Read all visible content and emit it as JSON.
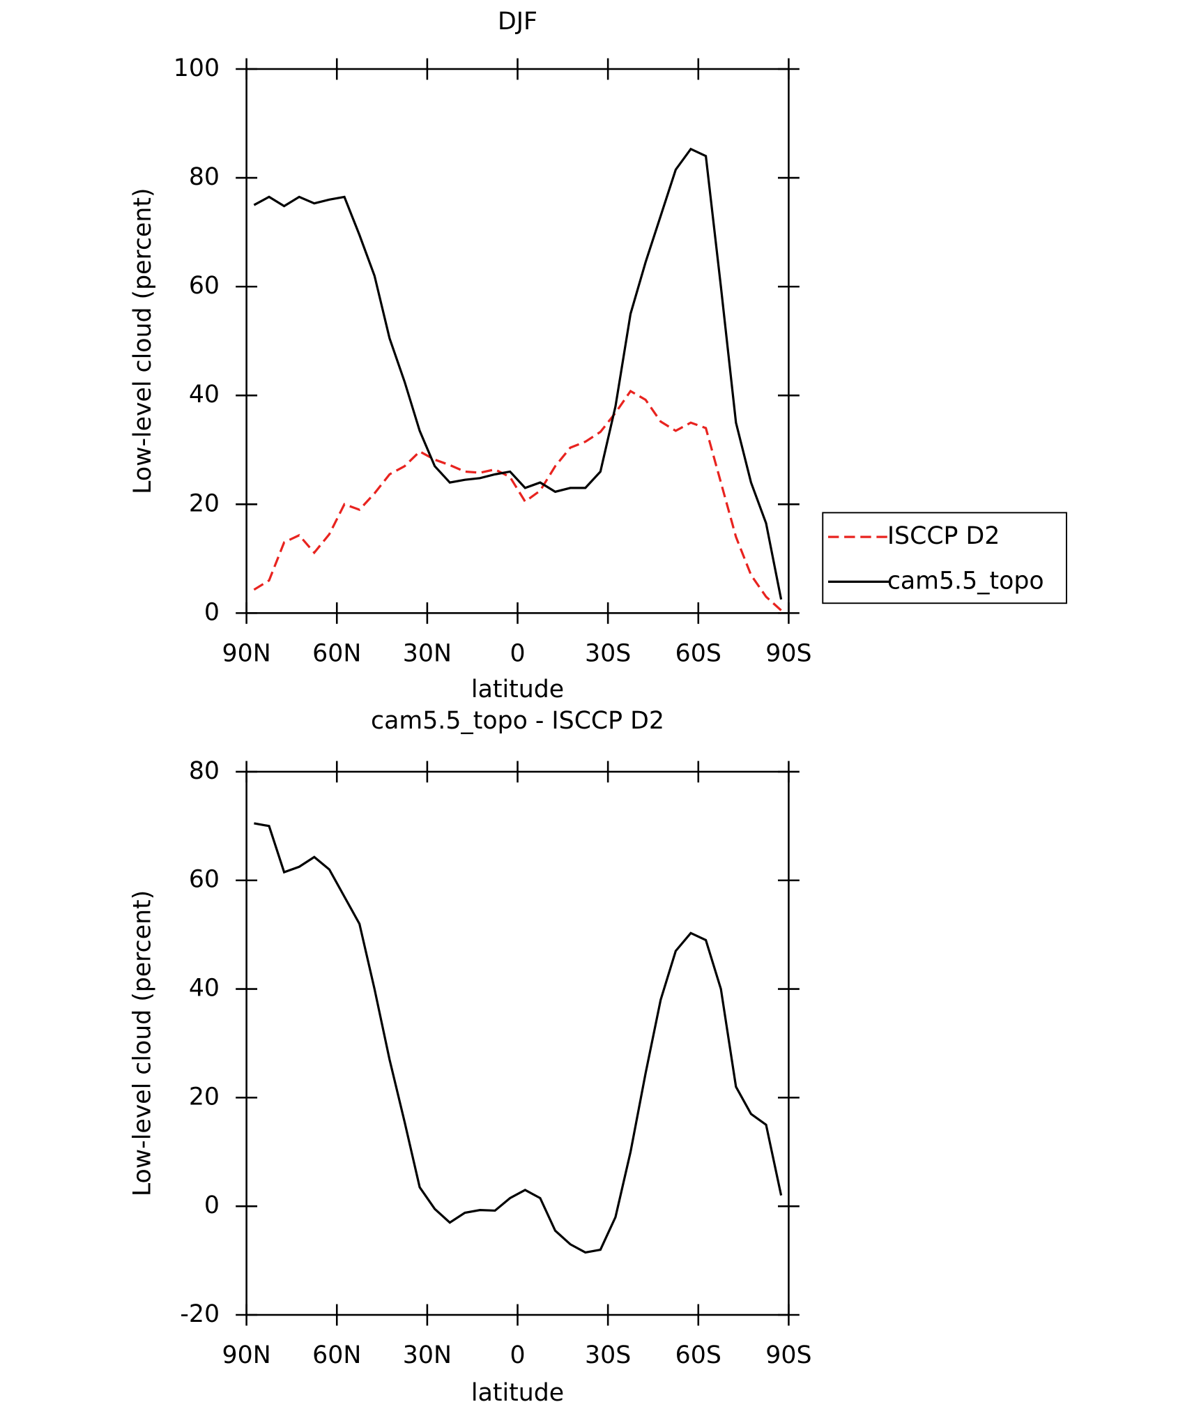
{
  "chart_data": [
    {
      "type": "line",
      "title": "DJF",
      "x_label": "latitude",
      "y_label": "Low-level cloud (percent)",
      "x": [
        87.5,
        82.5,
        77.5,
        72.5,
        67.5,
        62.5,
        57.5,
        52.5,
        47.5,
        42.5,
        37.5,
        32.5,
        27.5,
        22.5,
        17.5,
        12.5,
        7.5,
        2.5,
        -2.5,
        -7.5,
        -12.5,
        -17.5,
        -22.5,
        -27.5,
        -32.5,
        -37.5,
        -42.5,
        -47.5,
        -52.5,
        -57.5,
        -62.5,
        -67.5,
        -72.5,
        -77.5,
        -82.5,
        -87.5
      ],
      "xlim": [
        90,
        -90
      ],
      "xticks": [
        {
          "value": 90,
          "label": "90N"
        },
        {
          "value": 60,
          "label": "60N"
        },
        {
          "value": 30,
          "label": "30N"
        },
        0,
        {
          "value": -30,
          "label": "30S"
        },
        {
          "value": -60,
          "label": "60S"
        },
        {
          "value": -90,
          "label": "90S"
        }
      ],
      "ylim": [
        0,
        100
      ],
      "yticks": [
        0,
        20,
        40,
        60,
        80,
        100
      ],
      "legend": "right",
      "series": [
        {
          "name": "ISCCP D2",
          "color": "#e8231f",
          "dashed": true,
          "values": [
            4.3,
            6,
            13,
            14.3,
            11.1,
            14.5,
            20,
            19,
            22,
            25.5,
            27,
            29.7,
            28.2,
            27.2,
            26,
            25.8,
            26.4,
            25,
            20.5,
            22.5,
            27,
            30.4,
            31.5,
            33.3,
            36.8,
            40.8,
            39.2,
            35.2,
            33.5,
            35,
            34,
            24,
            14,
            7,
            3,
            0.5
          ]
        },
        {
          "name": "cam5.5_topo",
          "color": "#000000",
          "dashed": false,
          "values": [
            75,
            76.5,
            74.8,
            76.5,
            75.3,
            76,
            76.5,
            69.5,
            62,
            50.5,
            42.5,
            33.5,
            27,
            24,
            24.5,
            24.8,
            25.5,
            26,
            23,
            24,
            22.3,
            23,
            23,
            26,
            38,
            55,
            64.5,
            73,
            81.5,
            85.3,
            84,
            60,
            35,
            24,
            16.5,
            2.5
          ]
        }
      ]
    },
    {
      "type": "line",
      "title": "cam5.5_topo - ISCCP D2",
      "x_label": "latitude",
      "y_label": "Low-level cloud (percent)",
      "x": [
        87.5,
        82.5,
        77.5,
        72.5,
        67.5,
        62.5,
        57.5,
        52.5,
        47.5,
        42.5,
        37.5,
        32.5,
        27.5,
        22.5,
        17.5,
        12.5,
        7.5,
        2.5,
        -2.5,
        -7.5,
        -12.5,
        -17.5,
        -22.5,
        -27.5,
        -32.5,
        -37.5,
        -42.5,
        -47.5,
        -52.5,
        -57.5,
        -62.5,
        -67.5,
        -72.5,
        -77.5,
        -82.5,
        -87.5
      ],
      "xlim": [
        90,
        -90
      ],
      "xticks": [
        {
          "value": 90,
          "label": "90N"
        },
        {
          "value": 60,
          "label": "60N"
        },
        {
          "value": 30,
          "label": "30N"
        },
        0,
        {
          "value": -30,
          "label": "30S"
        },
        {
          "value": -60,
          "label": "60S"
        },
        {
          "value": -90,
          "label": "90S"
        }
      ],
      "ylim": [
        -20,
        80
      ],
      "yticks": [
        -20,
        0,
        20,
        40,
        60,
        80
      ],
      "series": [
        {
          "color": "#000000",
          "dashed": false,
          "values": [
            70.5,
            70,
            61.5,
            62.5,
            64.3,
            62,
            57,
            52,
            40,
            27,
            15.5,
            3.5,
            -0.5,
            -3,
            -1.2,
            -0.7,
            -0.8,
            1.5,
            3,
            1.5,
            -4.5,
            -7,
            -8.5,
            -8,
            -2,
            10,
            24.5,
            38,
            47,
            50.3,
            49,
            40,
            22,
            17,
            15,
            2
          ]
        }
      ]
    }
  ]
}
